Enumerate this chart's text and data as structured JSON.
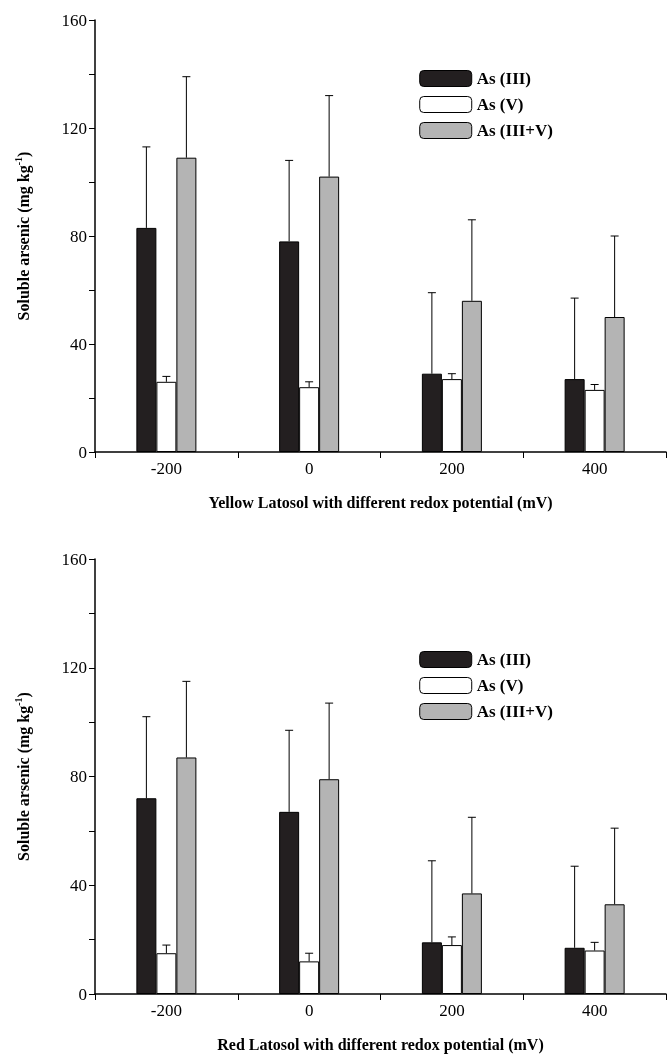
{
  "chart_data": [
    {
      "type": "bar",
      "xlabel": "Yellow Latosol with different redox potential (mV)",
      "ylabel": "Soluble arsenic (mg kg$^{-1}$)",
      "categories": [
        "-200",
        "0",
        "200",
        "400"
      ],
      "series": [
        {
          "name": "As (III)",
          "color": "#231f20",
          "values": [
            83,
            78,
            29,
            27
          ],
          "errors": [
            [
              83,
              113
            ],
            [
              78,
              108
            ],
            [
              29,
              59
            ],
            [
              27,
              57
            ]
          ]
        },
        {
          "name": "As (V)",
          "color": "#ffffff",
          "values": [
            26,
            24,
            27,
            23
          ],
          "errors": [
            [
              26,
              28
            ],
            [
              24,
              26
            ],
            [
              27,
              29
            ],
            [
              23,
              25
            ]
          ]
        },
        {
          "name": "As (III+V)",
          "color": "#b4b4b4",
          "values": [
            109,
            102,
            56,
            50
          ],
          "errors": [
            [
              109,
              139
            ],
            [
              102,
              132
            ],
            [
              56,
              86
            ],
            [
              50,
              80
            ]
          ]
        }
      ],
      "ylim": [
        0,
        160
      ],
      "yticks": [
        0,
        {
          "value": 20,
          "label": null
        },
        40,
        {
          "value": 60,
          "label": null
        },
        80,
        {
          "value": 100,
          "label": null
        },
        120,
        {
          "value": 140,
          "label": null
        },
        160
      ],
      "grid": false,
      "legend": "top right"
    },
    {
      "type": "bar",
      "xlabel": "Red Latosol with different redox potential (mV)",
      "ylabel": "Soluble arsenic (mg kg$^{-1}$)",
      "categories": [
        "-200",
        "0",
        "200",
        "400"
      ],
      "series": [
        {
          "name": "As (III)",
          "color": "#231f20",
          "values": [
            72,
            67,
            19,
            17
          ],
          "errors": [
            [
              72,
              102
            ],
            [
              67,
              97
            ],
            [
              19,
              49
            ],
            [
              17,
              47
            ]
          ]
        },
        {
          "name": "As (V)",
          "color": "#ffffff",
          "values": [
            15,
            12,
            18,
            16
          ],
          "errors": [
            [
              15,
              18
            ],
            [
              12,
              15
            ],
            [
              18,
              21
            ],
            [
              16,
              19
            ]
          ]
        },
        {
          "name": "As (III+V)",
          "color": "#b4b4b4",
          "values": [
            87,
            79,
            37,
            33
          ],
          "errors": [
            [
              87,
              115
            ],
            [
              79,
              107
            ],
            [
              37,
              65
            ],
            [
              33,
              61
            ]
          ]
        }
      ],
      "ylim": [
        0,
        160
      ],
      "yticks": [
        0,
        {
          "value": 20,
          "label": null
        },
        40,
        {
          "value": 60,
          "label": null
        },
        80,
        {
          "value": 100,
          "label": null
        },
        120,
        {
          "value": 140,
          "label": null
        },
        160
      ],
      "grid": false,
      "legend": "top right"
    }
  ]
}
